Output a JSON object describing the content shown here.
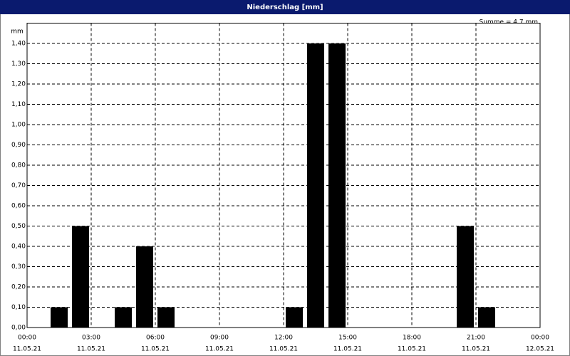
{
  "chart_data": {
    "type": "bar",
    "title": "Niederschlag [mm]",
    "y_unit": "mm",
    "annotation": "Summe = 4,7 mm",
    "x": [
      2,
      3,
      5,
      6,
      7,
      13,
      14,
      15,
      21,
      22
    ],
    "values": [
      0.1,
      0.5,
      0.1,
      0.4,
      0.1,
      0.1,
      1.4,
      1.4,
      0.5,
      0.1
    ],
    "color": "#000000",
    "xlim": [
      0,
      24
    ],
    "xticks": [
      {
        "value": 0,
        "label": "00:00",
        "date": "11.05.21"
      },
      {
        "value": 3,
        "label": "03:00",
        "date": "11.05.21"
      },
      {
        "value": 6,
        "label": "06:00",
        "date": "11.05.21"
      },
      {
        "value": 9,
        "label": "09:00",
        "date": "11.05.21"
      },
      {
        "value": 12,
        "label": "12:00",
        "date": "11.05.21"
      },
      {
        "value": 15,
        "label": "15:00",
        "date": "11.05.21"
      },
      {
        "value": 18,
        "label": "18:00",
        "date": "11.05.21"
      },
      {
        "value": 21,
        "label": "21:00",
        "date": "11.05.21"
      },
      {
        "value": 24,
        "label": "00:00",
        "date": "12.05.21"
      }
    ],
    "ylim": [
      0,
      1.5
    ],
    "yticks": [
      {
        "value": 0,
        "label": "0,00"
      },
      {
        "value": 0.1,
        "label": "0,10"
      },
      {
        "value": 0.2,
        "label": "0,20"
      },
      {
        "value": 0.3,
        "label": "0,30"
      },
      {
        "value": 0.4,
        "label": "0,40"
      },
      {
        "value": 0.5,
        "label": "0,50"
      },
      {
        "value": 0.6,
        "label": "0,60"
      },
      {
        "value": 0.7,
        "label": "0,70"
      },
      {
        "value": 0.8,
        "label": "0,80"
      },
      {
        "value": 0.9,
        "label": "0,90"
      },
      {
        "value": 1.0,
        "label": "1,00"
      },
      {
        "value": 1.1,
        "label": "1,10"
      },
      {
        "value": 1.2,
        "label": "1,20"
      },
      {
        "value": 1.3,
        "label": "1,30"
      },
      {
        "value": 1.4,
        "label": "1,40"
      }
    ],
    "grid": true
  }
}
